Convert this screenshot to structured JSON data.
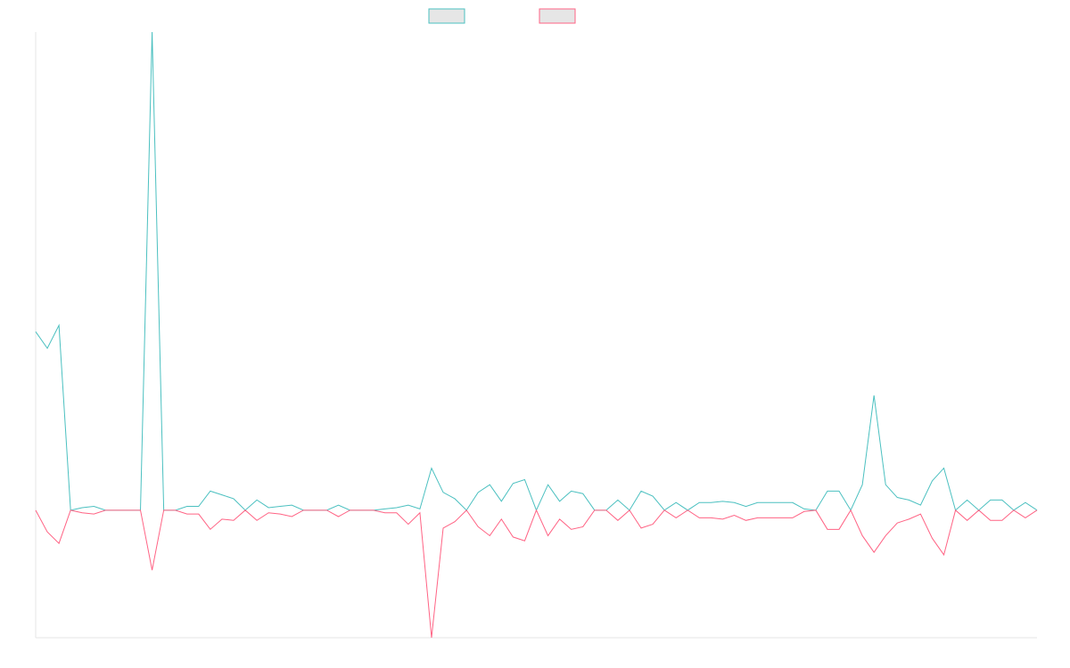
{
  "chart_data": {
    "type": "line",
    "title": "",
    "xlabel": "",
    "ylabel": "",
    "grid": false,
    "legend_position": "top",
    "ylim": [
      -100,
      375
    ],
    "series": [
      {
        "name": "",
        "color": "#4bc0c0",
        "legend_fill": "#e6e6e6",
        "values": [
          140,
          127,
          145,
          0,
          2,
          3,
          0,
          0,
          0,
          0,
          375,
          0,
          0,
          3,
          3,
          15,
          12,
          9,
          0,
          8,
          2,
          3,
          4,
          0,
          0,
          0,
          4,
          0,
          0,
          0,
          1,
          2,
          4,
          1,
          33,
          14,
          9,
          0,
          14,
          20,
          7,
          21,
          24,
          0,
          20,
          7,
          15,
          13,
          0,
          0,
          8,
          0,
          15,
          11,
          0,
          6,
          0,
          6,
          6,
          7,
          6,
          3,
          6,
          6,
          6,
          6,
          1,
          0,
          15,
          15,
          0,
          20,
          90,
          20,
          10,
          8,
          4,
          23,
          33,
          0,
          8,
          0,
          8,
          8,
          0,
          6,
          0
        ]
      },
      {
        "name": "",
        "color": "#ff6384",
        "legend_fill": "#e6e6e6",
        "values": [
          0,
          -17,
          -26,
          0,
          -2,
          -3,
          0,
          0,
          0,
          0,
          -47,
          0,
          0,
          -3,
          -3,
          -15,
          -7,
          -8,
          0,
          -8,
          -2,
          -3,
          -5,
          0,
          0,
          0,
          -5,
          0,
          0,
          0,
          -2,
          -2,
          -11,
          -2,
          -100,
          -14,
          -9,
          0,
          -13,
          -20,
          -7,
          -21,
          -24,
          0,
          -20,
          -7,
          -15,
          -13,
          0,
          0,
          -8,
          0,
          -14,
          -11,
          0,
          -6,
          0,
          -6,
          -6,
          -7,
          -4,
          -8,
          -6,
          -6,
          -6,
          -6,
          -1,
          0,
          -15,
          -15,
          0,
          -20,
          -33,
          -20,
          -10,
          -7,
          -3,
          -22,
          -35,
          0,
          -8,
          0,
          -8,
          -8,
          0,
          -6,
          0
        ]
      }
    ]
  }
}
